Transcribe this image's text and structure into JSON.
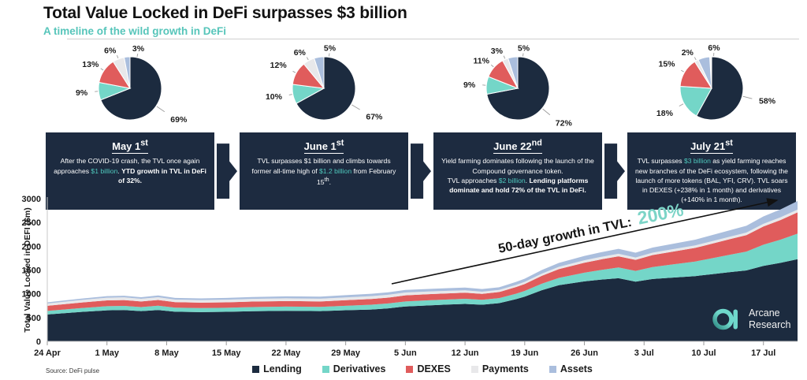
{
  "header": {
    "title": "Total Value Locked in DeFi surpasses $3 billion",
    "subtitle": "A timeline of the wild growth in DeFi"
  },
  "timeline": [
    {
      "title": "May 1",
      "ordinal": "st",
      "body": [
        {
          "t": "After the COVID-19 crash, the TVL once again approaches "
        },
        {
          "t": "$1 billion",
          "s": "teal"
        },
        {
          "t": ". "
        },
        {
          "t": "YTD growth in TVL in DeFi of 32%.",
          "s": "bold"
        }
      ]
    },
    {
      "title": "June 1",
      "ordinal": "st",
      "body": [
        {
          "t": "TVL surpasses $1 billion and climbs towards former all-time high of "
        },
        {
          "t": "$1.2 billion",
          "s": "teal"
        },
        {
          "t": " from February 15"
        },
        {
          "t": "th",
          "s": "sup"
        },
        {
          "t": "."
        }
      ]
    },
    {
      "title": "June 22",
      "ordinal": "nd",
      "body": [
        {
          "t": "Yield farming dominates following the launch of the Compound governance token."
        },
        {
          "s": "br"
        },
        {
          "t": "TVL approaches "
        },
        {
          "t": "$2 billion",
          "s": "teal"
        },
        {
          "t": ".  "
        },
        {
          "t": "Lending platforms dominate and hold 72% of the TVL in DeFi.",
          "s": "bold"
        }
      ]
    },
    {
      "title": "July 21",
      "ordinal": "st",
      "body": [
        {
          "t": "TVL surpasses "
        },
        {
          "t": "$3 billion",
          "s": "teal"
        },
        {
          "t": " as yield farming reaches new branches of the DeFi ecosystem, following the launch of more tokens (BAL, YFI, CRV). TVL soars in DEXES (+238% in 1 month) and derivatives (+140% in 1 month)."
        }
      ]
    }
  ],
  "chart_data": [
    {
      "type": "area",
      "stacked": true,
      "title": "",
      "xlabel": "",
      "ylabel": "Total Value Locked in DEFI ($m)",
      "ylim": [
        0,
        3000
      ],
      "y_ticks": [
        0,
        500,
        1000,
        1500,
        2000,
        2500,
        3000
      ],
      "xlim_days": [
        0,
        88
      ],
      "x_tick_days": [
        0,
        7,
        14,
        21,
        28,
        35,
        42,
        49,
        56,
        63,
        70,
        77,
        84
      ],
      "x_tick_labels": [
        "24 Apr",
        "1 May",
        "8 May",
        "15 May",
        "22 May",
        "29 May",
        "5 Jun",
        "12 Jun",
        "19 Jun",
        "26 Jun",
        "3 Jul",
        "10 Jul",
        "17 Jul"
      ],
      "x_days": [
        0,
        4,
        7,
        9,
        11,
        13,
        15,
        18,
        21,
        24,
        28,
        32,
        35,
        38,
        40,
        42,
        45,
        47,
        49,
        51,
        53,
        55,
        56,
        58,
        60,
        63,
        65,
        67,
        69,
        71,
        73,
        76,
        78,
        80,
        82,
        84,
        86,
        88
      ],
      "series": [
        {
          "name": "Lending",
          "color": "#1c2b3f",
          "values": [
            566,
            619,
            652,
            658,
            636,
            659,
            624,
            616,
            621,
            633,
            642,
            636,
            655,
            670,
            695,
            734,
            759,
            774,
            787,
            771,
            804,
            888,
            941,
            1076,
            1180,
            1261,
            1299,
            1329,
            1256,
            1311,
            1337,
            1372,
            1414,
            1454,
            1492,
            1588,
            1651,
            1728
          ]
        },
        {
          "name": "Derivatives",
          "color": "#74d6c8",
          "values": [
            74,
            82,
            87,
            88,
            86,
            90,
            85,
            85,
            86,
            87,
            89,
            89,
            92,
            100,
            102,
            106,
            107,
            107,
            108,
            103,
            105,
            115,
            119,
            136,
            154,
            184,
            204,
            224,
            226,
            252,
            273,
            307,
            335,
            365,
            395,
            444,
            487,
            536
          ]
        },
        {
          "name": "DEXES",
          "color": "#e05c5c",
          "values": [
            107,
            116,
            122,
            123,
            118,
            122,
            115,
            113,
            114,
            116,
            117,
            115,
            118,
            120,
            123,
            128,
            129,
            129,
            129,
            125,
            128,
            140,
            146,
            165,
            184,
            208,
            222,
            236,
            232,
            251,
            265,
            287,
            306,
            327,
            347,
            383,
            412,
            447
          ]
        },
        {
          "name": "Payments",
          "color": "#e8e8ea",
          "values": [
            49,
            54,
            57,
            58,
            56,
            58,
            55,
            54,
            55,
            56,
            57,
            57,
            59,
            60,
            59,
            59,
            55,
            53,
            50,
            46,
            44,
            45,
            45,
            47,
            49,
            52,
            53,
            53,
            50,
            51,
            52,
            52,
            53,
            53,
            54,
            57,
            58,
            60
          ]
        },
        {
          "name": "Assets",
          "color": "#aabedd",
          "values": [
            25,
            29,
            32,
            33,
            33,
            36,
            35,
            36,
            38,
            40,
            42,
            44,
            47,
            50,
            52,
            54,
            55,
            56,
            57,
            55,
            57,
            63,
            66,
            75,
            83,
            92,
            98,
            103,
            100,
            107,
            112,
            120,
            127,
            134,
            142,
            155,
            166,
            179
          ]
        }
      ],
      "legend_position": "bottom-center",
      "grid": false,
      "annotation": {
        "label": "50-day growth in TVL: ",
        "value": "200%"
      }
    },
    {
      "type": "pie",
      "title": "May 1st",
      "labels": [
        "Lending",
        "Derivatives",
        "DEXES",
        "Payments",
        "Assets"
      ],
      "values": [
        69,
        9,
        13,
        6,
        3
      ]
    },
    {
      "type": "pie",
      "title": "June 1st",
      "labels": [
        "Lending",
        "Derivatives",
        "DEXES",
        "Payments",
        "Assets"
      ],
      "values": [
        67,
        10,
        12,
        6,
        5
      ]
    },
    {
      "type": "pie",
      "title": "June 22nd",
      "labels": [
        "Lending",
        "Derivatives",
        "DEXES",
        "Payments",
        "Assets"
      ],
      "values": [
        72,
        9,
        11,
        3,
        5
      ]
    },
    {
      "type": "pie",
      "title": "July 21st",
      "labels": [
        "Lending",
        "Derivatives",
        "DEXES",
        "Payments",
        "Assets"
      ],
      "values": [
        58,
        18,
        15,
        2,
        6
      ]
    }
  ],
  "source": "Source: DeFi pulse",
  "brand": {
    "line1": "Arcane",
    "line2": "Research"
  },
  "colors": {
    "navy": "#1d2b40",
    "teal": "#56c5ba",
    "teal_light": "#7cd4c7",
    "red": "#e05c5c",
    "gray": "#e8e8ea",
    "blue": "#aabedd"
  }
}
